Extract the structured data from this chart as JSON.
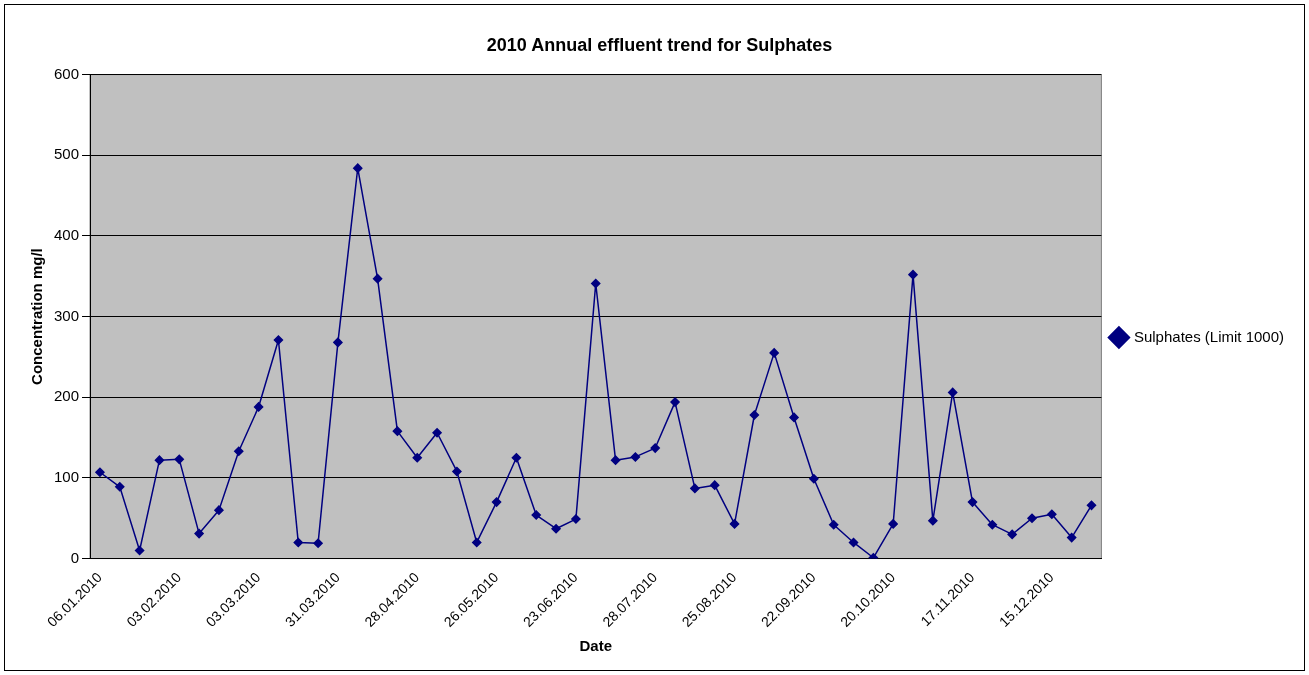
{
  "chart_data": {
    "type": "line",
    "title": "2010 Annual effluent trend for Sulphates",
    "xlabel": "Date",
    "ylabel": "Concentration mg/l",
    "categories": [
      "06.01.2010",
      null,
      null,
      null,
      "03.02.2010",
      null,
      null,
      null,
      "03.03.2010",
      null,
      null,
      null,
      "31.03.2010",
      null,
      null,
      null,
      "28.04.2010",
      null,
      null,
      null,
      "26.05.2010",
      null,
      null,
      null,
      "23.06.2010",
      null,
      null,
      null,
      "28.07.2010",
      null,
      null,
      null,
      "25.08.2010",
      null,
      null,
      null,
      "22.09.2010",
      null,
      null,
      null,
      "20.10.2010",
      null,
      null,
      null,
      "17.11.2010",
      null,
      null,
      null,
      "15.12.2010",
      null,
      null
    ],
    "series": [
      {
        "name": "Sulphates (Limit 1000)",
        "color": "#000080",
        "values": [
          107,
          89,
          10,
          122,
          123,
          31,
          60,
          133,
          188,
          271,
          20,
          19,
          268,
          484,
          347,
          158,
          125,
          156,
          108,
          20,
          70,
          125,
          54,
          37,
          49,
          341,
          122,
          126,
          137,
          194,
          87,
          91,
          43,
          178,
          255,
          175,
          99,
          42,
          20,
          1,
          43,
          352,
          47,
          206,
          70,
          42,
          30,
          50,
          55,
          26,
          66
        ]
      }
    ],
    "ylim": [
      0,
      600
    ],
    "yticks": [
      0,
      100,
      200,
      300,
      400,
      500,
      600
    ],
    "grid": "y",
    "legend": "right",
    "marker": "diamond",
    "line_style": "solid"
  }
}
